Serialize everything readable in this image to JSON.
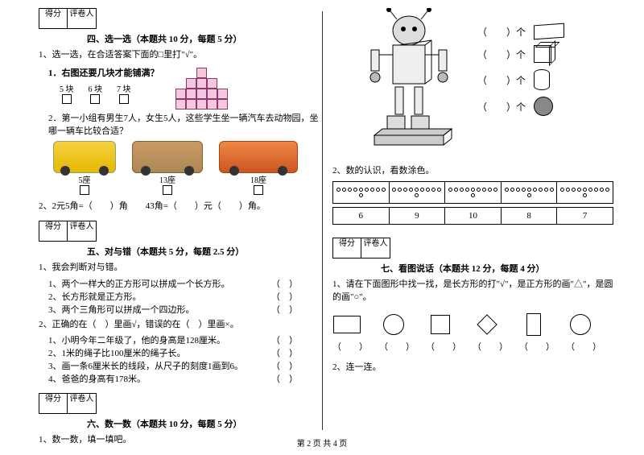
{
  "footer": "第 2 页 共 4 页",
  "scoreHeaders": {
    "a": "得分",
    "b": "评卷人"
  },
  "s4": {
    "title": "四、选一选（本题共 10 分，每题 5 分）",
    "q1": "1、选一选，在合适答案下面的□里打\"√\"。",
    "q1_1": "1．右图还要几块才能铺满？",
    "opts": [
      "5 块",
      "6 块",
      "7 块"
    ],
    "q1_2": "2．第一小组有男生7人，女生5人，这些学生坐一辆汽车去动物园，坐哪一辆车比较合适？",
    "seats": [
      "5座",
      "13座",
      "18座"
    ],
    "q2": "2、2元5角=（　　）角　　43角=（　　）元（　　）角。"
  },
  "s5": {
    "title": "五、对与错（本题共 5 分，每题 2.5 分）",
    "q1": "1、我会判断对与错。",
    "items1": [
      "1、两个一样大的正方形可以拼成一个长方形。",
      "2、长方形就是正方形。",
      "3、两个三角形可以拼成一个四边形。"
    ],
    "q2": "2、正确的在（　）里画√，错误的在（　）里画×。",
    "items2": [
      "1、小明今年二年级了，他的身高是128厘米。",
      "2、1米的绳子比100厘米的绳子长。",
      "3、画一条6厘米长的线段，从尺子的刻度1画到6。",
      "4、爸爸的身高有178米。"
    ]
  },
  "s6": {
    "title": "六、数一数（本题共 10 分，每题 5 分）",
    "q1": "1、数一数，填一填吧。"
  },
  "shape_col": {
    "labels": [
      "（　　）个",
      "（　　）个",
      "（　　）个",
      "（　　）个"
    ]
  },
  "dotspart": {
    "q": "2、数的认识，看数涂色。",
    "nums": [
      "6",
      "9",
      "10",
      "8",
      "7"
    ]
  },
  "s7": {
    "title": "七、看图说话（本题共 12 分，每题 4 分）",
    "q1": "1、请在下面图形中找一找，是长方形的打\"√\"，是正方形的画\"△\"，是圆的画\"○\"。",
    "ans_row": [
      "（　　）",
      "（　　）",
      "（　　）",
      "（　　）",
      "（　　）",
      "（　　）"
    ],
    "q2": "2、连一连。"
  }
}
